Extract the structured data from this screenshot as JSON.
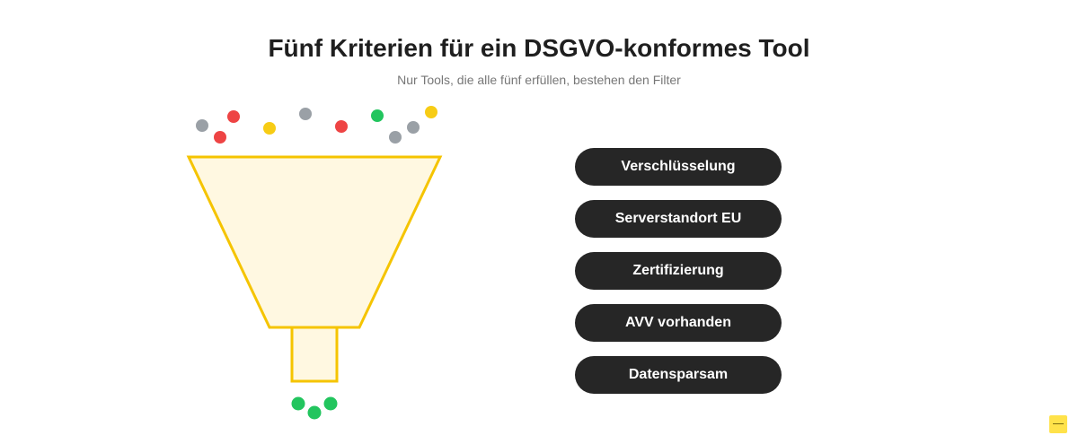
{
  "header": {
    "title": "Fünf Kriterien für ein DSGVO-konformes Tool",
    "subtitle": "Nur Tools, die alle fünf erfüllen, bestehen den Filter"
  },
  "criteria": [
    "Verschlüsselung",
    "Serverstandort EU",
    "Zertifizierung",
    "AVV vorhanden",
    "Datensparsam"
  ],
  "colors": {
    "funnel_stroke": "#f5c400",
    "funnel_fill": "#fff8e1",
    "dot_gray": "#9aa0a6",
    "dot_red": "#ee4444",
    "dot_yellow": "#f7cc15",
    "dot_green": "#22c55e",
    "pill_bg": "#262626",
    "pill_text": "#ffffff"
  }
}
